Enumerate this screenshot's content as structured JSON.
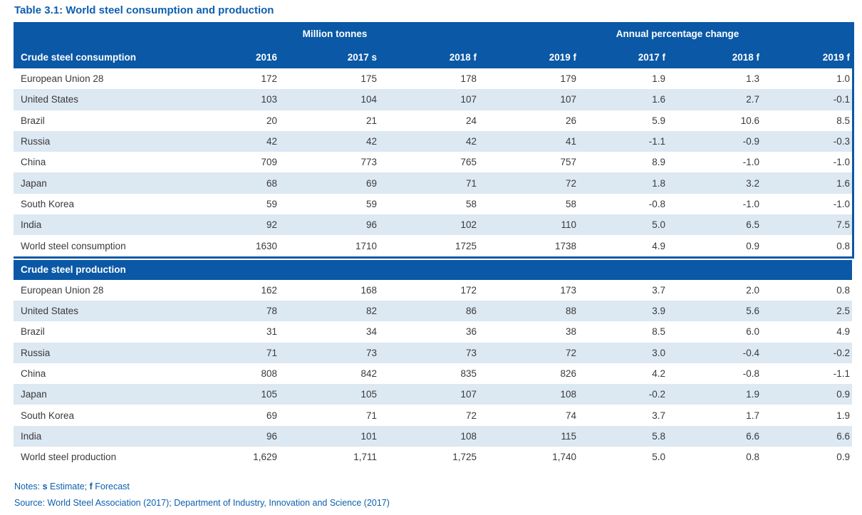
{
  "title": "Table 3.1: World steel consumption and production",
  "colors": {
    "header_blue": "#0a58a6",
    "stripe_blue": "#dce8f2",
    "accent_text_blue": "#0c5fae",
    "body_text": "#3a3a3a"
  },
  "table": {
    "group_headers": {
      "million_tonnes": "Million tonnes",
      "annual_change": "Annual percentage change"
    },
    "columns": [
      "2016",
      "2017 s",
      "2018 f",
      "2019 f",
      "2017 f",
      "2018 f",
      "2019 f"
    ],
    "consumption": {
      "header": "Crude steel consumption",
      "rows": [
        {
          "label": "European Union 28",
          "values": [
            "172",
            "175",
            "178",
            "179",
            "1.9",
            "1.3",
            "1.0"
          ]
        },
        {
          "label": "United States",
          "values": [
            "103",
            "104",
            "107",
            "107",
            "1.6",
            "2.7",
            "-0.1"
          ]
        },
        {
          "label": "Brazil",
          "values": [
            "20",
            "21",
            "24",
            "26",
            "5.9",
            "10.6",
            "8.5"
          ]
        },
        {
          "label": "Russia",
          "values": [
            "42",
            "42",
            "42",
            "41",
            "-1.1",
            "-0.9",
            "-0.3"
          ]
        },
        {
          "label": "China",
          "values": [
            "709",
            "773",
            "765",
            "757",
            "8.9",
            "-1.0",
            "-1.0"
          ]
        },
        {
          "label": "Japan",
          "values": [
            "68",
            "69",
            "71",
            "72",
            "1.8",
            "3.2",
            "1.6"
          ]
        },
        {
          "label": "South Korea",
          "values": [
            "59",
            "59",
            "58",
            "58",
            "-0.8",
            "-1.0",
            "-1.0"
          ]
        },
        {
          "label": "India",
          "values": [
            "92",
            "96",
            "102",
            "110",
            "5.0",
            "6.5",
            "7.5"
          ]
        },
        {
          "label": "World steel consumption",
          "values": [
            "1630",
            "1710",
            "1725",
            "1738",
            "4.9",
            "0.9",
            "0.8"
          ]
        }
      ]
    },
    "production": {
      "header": "Crude steel production",
      "rows": [
        {
          "label": "European Union 28",
          "values": [
            "162",
            "168",
            "172",
            "173",
            "3.7",
            "2.0",
            "0.8"
          ]
        },
        {
          "label": "United States",
          "values": [
            "78",
            "82",
            "86",
            "88",
            "3.9",
            "5.6",
            "2.5"
          ]
        },
        {
          "label": "Brazil",
          "values": [
            "31",
            "34",
            "36",
            "38",
            "8.5",
            "6.0",
            "4.9"
          ]
        },
        {
          "label": "Russia",
          "values": [
            "71",
            "73",
            "73",
            "72",
            "3.0",
            "-0.4",
            "-0.2"
          ]
        },
        {
          "label": "China",
          "values": [
            "808",
            "842",
            "835",
            "826",
            "4.2",
            "-0.8",
            "-1.1"
          ]
        },
        {
          "label": "Japan",
          "values": [
            "105",
            "105",
            "107",
            "108",
            "-0.2",
            "1.9",
            "0.9"
          ]
        },
        {
          "label": "South Korea",
          "values": [
            "69",
            "71",
            "72",
            "74",
            "3.7",
            "1.7",
            "1.9"
          ]
        },
        {
          "label": "India",
          "values": [
            "96",
            "101",
            "108",
            "115",
            "5.8",
            "6.6",
            "6.6"
          ]
        },
        {
          "label": "World steel production",
          "values": [
            "1,629",
            "1,711",
            "1,725",
            "1,740",
            "5.0",
            "0.8",
            "0.9"
          ]
        }
      ]
    }
  },
  "notes": {
    "prefix": "Notes: ",
    "s_label": "s",
    "s_text": " Estimate; ",
    "f_label": "f",
    "f_text": " Forecast"
  },
  "source": "Source: World Steel Association (2017); Department of Industry, Innovation and Science (2017)"
}
